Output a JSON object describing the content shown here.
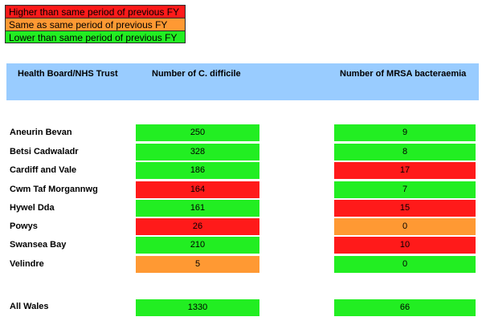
{
  "legend": {
    "higher": "Higher than same period of previous FY",
    "same": "Same as same period of previous FY",
    "lower": "Lower than same period of previous FY",
    "colors": {
      "higher": "#ff1a1a",
      "same": "#ff9933",
      "lower": "#22ee22"
    }
  },
  "header": {
    "col1": "Health Board/NHS Trust",
    "col2": "Number of C. difficile",
    "col3": "Number of MRSA bacteraemia"
  },
  "rows": [
    {
      "name": "Aneurin Bevan",
      "cdiff": "250",
      "cdiff_status": "lower",
      "mrsa": "9",
      "mrsa_status": "lower"
    },
    {
      "name": "Betsi Cadwaladr",
      "cdiff": "328",
      "cdiff_status": "lower",
      "mrsa": "8",
      "mrsa_status": "lower"
    },
    {
      "name": "Cardiff and Vale",
      "cdiff": "186",
      "cdiff_status": "lower",
      "mrsa": "17",
      "mrsa_status": "higher"
    },
    {
      "name": "Cwm Taf Morgannwg",
      "cdiff": "164",
      "cdiff_status": "higher",
      "mrsa": "7",
      "mrsa_status": "lower"
    },
    {
      "name": "Hywel Dda",
      "cdiff": "161",
      "cdiff_status": "lower",
      "mrsa": "15",
      "mrsa_status": "higher"
    },
    {
      "name": "Powys",
      "cdiff": "26",
      "cdiff_status": "higher",
      "mrsa": "0",
      "mrsa_status": "same"
    },
    {
      "name": "Swansea Bay",
      "cdiff": "210",
      "cdiff_status": "lower",
      "mrsa": "10",
      "mrsa_status": "higher"
    },
    {
      "name": "Velindre",
      "cdiff": "5",
      "cdiff_status": "same",
      "mrsa": "0",
      "mrsa_status": "lower"
    }
  ],
  "total": {
    "name": "All Wales",
    "cdiff": "1330",
    "cdiff_status": "lower",
    "mrsa": "66",
    "mrsa_status": "lower"
  }
}
